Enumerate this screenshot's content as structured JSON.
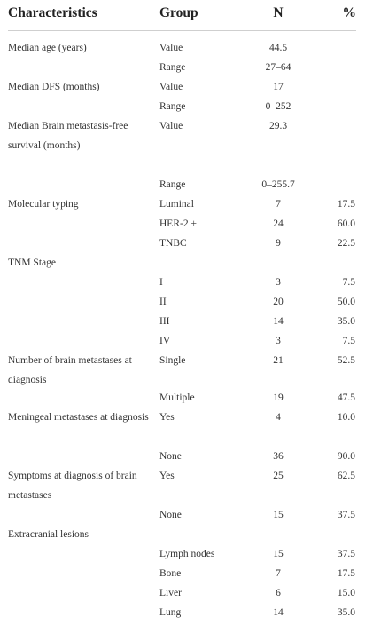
{
  "table": {
    "headers": [
      "Characteristics",
      "Group",
      "N",
      "%"
    ],
    "rows": [
      {
        "characteristic": "Median age (years)",
        "group": "Value",
        "n": "44.5",
        "pct": ""
      },
      {
        "characteristic": "",
        "group": "Range",
        "n": "27–64",
        "pct": ""
      },
      {
        "characteristic": "Median DFS (months)",
        "group": "Value",
        "n": "17",
        "pct": ""
      },
      {
        "characteristic": "",
        "group": "Range",
        "n": "0–252",
        "pct": ""
      },
      {
        "characteristic": "Median Brain metastasis-free survival (months)",
        "group": "Value",
        "n": "29.3",
        "pct": ""
      },
      {
        "characteristic": "",
        "group": "Range",
        "n": "0–255.7",
        "pct": ""
      },
      {
        "characteristic": "Molecular typing",
        "group": "Luminal",
        "n": "7",
        "pct": "17.5"
      },
      {
        "characteristic": "",
        "group": "HER-2 +",
        "n": "24",
        "pct": "60.0"
      },
      {
        "characteristic": "",
        "group": "TNBC",
        "n": "9",
        "pct": "22.5"
      },
      {
        "characteristic": "TNM Stage",
        "group": "",
        "n": "",
        "pct": ""
      },
      {
        "characteristic": "",
        "group": "I",
        "n": "3",
        "pct": "7.5"
      },
      {
        "characteristic": "",
        "group": "II",
        "n": "20",
        "pct": "50.0"
      },
      {
        "characteristic": "",
        "group": "III",
        "n": "14",
        "pct": "35.0"
      },
      {
        "characteristic": "",
        "group": "IV",
        "n": "3",
        "pct": "7.5"
      },
      {
        "characteristic": "Number of brain metastases at diagnosis",
        "group": "Single",
        "n": "21",
        "pct": "52.5"
      },
      {
        "characteristic": "",
        "group": "Multiple",
        "n": "19",
        "pct": "47.5"
      },
      {
        "characteristic": "Meningeal metastases at diagnosis",
        "group": "Yes",
        "n": "4",
        "pct": "10.0"
      },
      {
        "characteristic": "",
        "group": "None",
        "n": "36",
        "pct": "90.0"
      },
      {
        "characteristic": "Symptoms at diagnosis of brain metastases",
        "group": "Yes",
        "n": "25",
        "pct": "62.5"
      },
      {
        "characteristic": "",
        "group": "None",
        "n": "15",
        "pct": "37.5"
      },
      {
        "characteristic": "Extracranial lesions",
        "group": "",
        "n": "",
        "pct": ""
      },
      {
        "characteristic": "",
        "group": "Lymph nodes",
        "n": "15",
        "pct": "37.5"
      },
      {
        "characteristic": "",
        "group": "Bone",
        "n": "7",
        "pct": "17.5"
      },
      {
        "characteristic": "",
        "group": "Liver",
        "n": "6",
        "pct": "15.0"
      },
      {
        "characteristic": "",
        "group": "Lung",
        "n": "14",
        "pct": "35.0"
      }
    ]
  }
}
